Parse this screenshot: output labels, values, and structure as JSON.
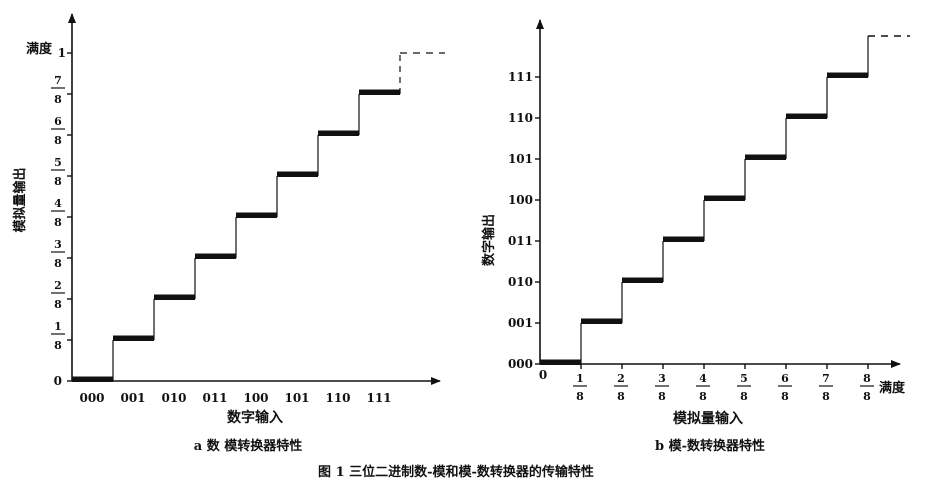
{
  "figure_caption": "图 1   三位二进制数-模和模-数转换器的传输特性",
  "chart_data": [
    {
      "type": "step",
      "caption": "a   数 模转换器特性",
      "ylabel": "模拟量输出",
      "xlabel": "数字输入",
      "y_top_label": "满度",
      "categories": [
        "000",
        "001",
        "010",
        "011",
        "100",
        "101",
        "110",
        "111"
      ],
      "y_ticks": [
        {
          "num": "",
          "den": "",
          "text": "0"
        },
        {
          "num": "1",
          "den": "8",
          "text": ""
        },
        {
          "num": "2",
          "den": "8",
          "text": ""
        },
        {
          "num": "3",
          "den": "8",
          "text": ""
        },
        {
          "num": "4",
          "den": "8",
          "text": ""
        },
        {
          "num": "5",
          "den": "8",
          "text": ""
        },
        {
          "num": "6",
          "den": "8",
          "text": ""
        },
        {
          "num": "7",
          "den": "8",
          "text": ""
        },
        {
          "num": "",
          "den": "",
          "text": "1"
        }
      ],
      "values": [
        0,
        1,
        2,
        3,
        4,
        5,
        6,
        7
      ],
      "full_scale_dashed": 8
    },
    {
      "type": "step",
      "caption": "b   模-数转换器特性",
      "ylabel": "数字输出",
      "xlabel": "模拟量输入",
      "x_end_label": "满度",
      "x_origin_label": "0",
      "x_ticks": [
        {
          "num": "1",
          "den": "8"
        },
        {
          "num": "2",
          "den": "8"
        },
        {
          "num": "3",
          "den": "8"
        },
        {
          "num": "4",
          "den": "8"
        },
        {
          "num": "5",
          "den": "8"
        },
        {
          "num": "6",
          "den": "8"
        },
        {
          "num": "7",
          "den": "8"
        },
        {
          "num": "8",
          "den": "8"
        }
      ],
      "y_ticks": [
        "000",
        "001",
        "010",
        "011",
        "100",
        "101",
        "110",
        "111"
      ],
      "values": [
        0,
        1,
        2,
        3,
        4,
        5,
        6,
        7
      ],
      "full_scale_dashed": 8
    }
  ]
}
